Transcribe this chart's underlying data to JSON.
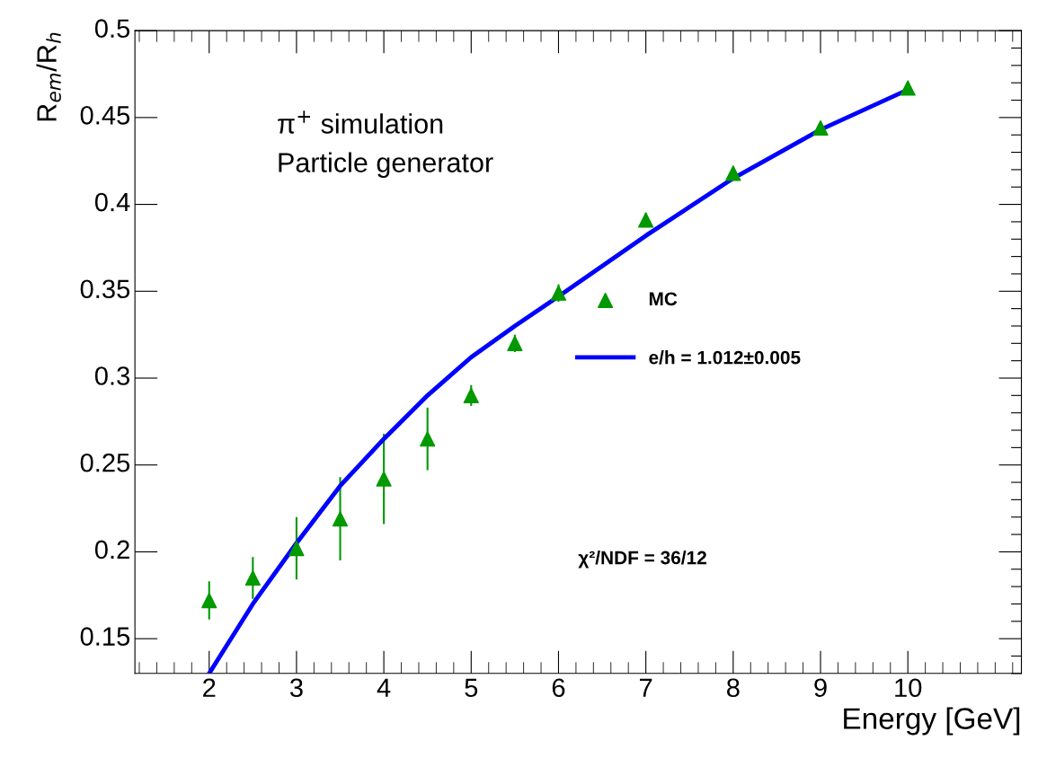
{
  "chart_data": {
    "type": "scatter",
    "xlabel": "Energy [GeV]",
    "ylabel": "R$_{em}$/R$_{h}$",
    "xlim": [
      1.15,
      11.3
    ],
    "ylim": [
      0.13,
      0.5
    ],
    "xticks": [
      2,
      3,
      4,
      5,
      6,
      7,
      8,
      9,
      10
    ],
    "yticks": [
      0.15,
      0.2,
      0.25,
      0.3,
      0.35,
      0.4,
      0.45,
      0.5
    ],
    "legend": "right",
    "grid": false,
    "annotations": [
      "π$^{+}$ simulation",
      "Particle generator",
      "χ²/NDF = 36/12"
    ],
    "series": [
      {
        "name": "MC",
        "marker": "triangle",
        "color": "#009900",
        "x": [
          2,
          2.5,
          3,
          3.5,
          4,
          4.5,
          5,
          5.5,
          6,
          7,
          8,
          9,
          10
        ],
        "values": [
          0.172,
          0.185,
          0.202,
          0.219,
          0.242,
          0.265,
          0.29,
          0.32,
          0.349,
          0.391,
          0.418,
          0.444,
          0.467
        ],
        "errors": [
          0.011,
          0.012,
          0.018,
          0.024,
          0.026,
          0.018,
          0.006,
          0.005,
          0.005,
          0.004,
          0.003,
          0.003,
          0.003
        ]
      },
      {
        "name": "e/h = 1.012±0.005",
        "type": "line",
        "color": "#0000ff",
        "x": [
          2,
          2.5,
          3,
          3.5,
          4,
          4.5,
          5,
          5.5,
          6,
          7,
          8,
          9,
          10
        ],
        "values": [
          0.13,
          0.17,
          0.205,
          0.238,
          0.265,
          0.29,
          0.312,
          0.33,
          0.347,
          0.382,
          0.415,
          0.443,
          0.466
        ]
      }
    ]
  }
}
